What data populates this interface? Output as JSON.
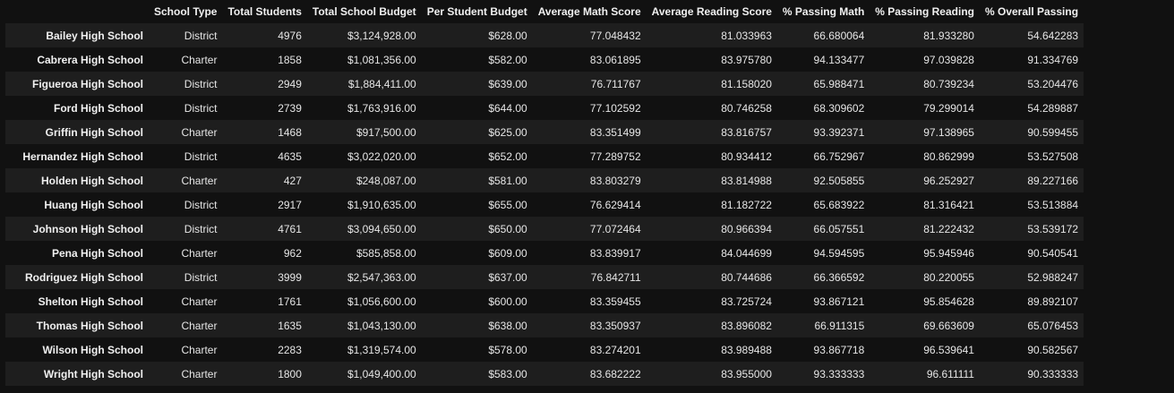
{
  "table": {
    "columns": [
      "",
      "School Type",
      "Total Students",
      "Total School Budget",
      "Per Student Budget",
      "Average Math Score",
      "Average Reading Score",
      "% Passing Math",
      "% Passing Reading",
      "% Overall Passing"
    ],
    "rows": [
      [
        "Bailey High School",
        "District",
        "4976",
        "$3,124,928.00",
        "$628.00",
        "77.048432",
        "81.033963",
        "66.680064",
        "81.933280",
        "54.642283"
      ],
      [
        "Cabrera High School",
        "Charter",
        "1858",
        "$1,081,356.00",
        "$582.00",
        "83.061895",
        "83.975780",
        "94.133477",
        "97.039828",
        "91.334769"
      ],
      [
        "Figueroa High School",
        "District",
        "2949",
        "$1,884,411.00",
        "$639.00",
        "76.711767",
        "81.158020",
        "65.988471",
        "80.739234",
        "53.204476"
      ],
      [
        "Ford High School",
        "District",
        "2739",
        "$1,763,916.00",
        "$644.00",
        "77.102592",
        "80.746258",
        "68.309602",
        "79.299014",
        "54.289887"
      ],
      [
        "Griffin High School",
        "Charter",
        "1468",
        "$917,500.00",
        "$625.00",
        "83.351499",
        "83.816757",
        "93.392371",
        "97.138965",
        "90.599455"
      ],
      [
        "Hernandez High School",
        "District",
        "4635",
        "$3,022,020.00",
        "$652.00",
        "77.289752",
        "80.934412",
        "66.752967",
        "80.862999",
        "53.527508"
      ],
      [
        "Holden High School",
        "Charter",
        "427",
        "$248,087.00",
        "$581.00",
        "83.803279",
        "83.814988",
        "92.505855",
        "96.252927",
        "89.227166"
      ],
      [
        "Huang High School",
        "District",
        "2917",
        "$1,910,635.00",
        "$655.00",
        "76.629414",
        "81.182722",
        "65.683922",
        "81.316421",
        "53.513884"
      ],
      [
        "Johnson High School",
        "District",
        "4761",
        "$3,094,650.00",
        "$650.00",
        "77.072464",
        "80.966394",
        "66.057551",
        "81.222432",
        "53.539172"
      ],
      [
        "Pena High School",
        "Charter",
        "962",
        "$585,858.00",
        "$609.00",
        "83.839917",
        "84.044699",
        "94.594595",
        "95.945946",
        "90.540541"
      ],
      [
        "Rodriguez High School",
        "District",
        "3999",
        "$2,547,363.00",
        "$637.00",
        "76.842711",
        "80.744686",
        "66.366592",
        "80.220055",
        "52.988247"
      ],
      [
        "Shelton High School",
        "Charter",
        "1761",
        "$1,056,600.00",
        "$600.00",
        "83.359455",
        "83.725724",
        "93.867121",
        "95.854628",
        "89.892107"
      ],
      [
        "Thomas High School",
        "Charter",
        "1635",
        "$1,043,130.00",
        "$638.00",
        "83.350937",
        "83.896082",
        "66.911315",
        "69.663609",
        "65.076453"
      ],
      [
        "Wilson High School",
        "Charter",
        "2283",
        "$1,319,574.00",
        "$578.00",
        "83.274201",
        "83.989488",
        "93.867718",
        "96.539641",
        "90.582567"
      ],
      [
        "Wright High School",
        "Charter",
        "1800",
        "$1,049,400.00",
        "$583.00",
        "83.682222",
        "83.955000",
        "93.333333",
        "96.611111",
        "90.333333"
      ]
    ]
  }
}
